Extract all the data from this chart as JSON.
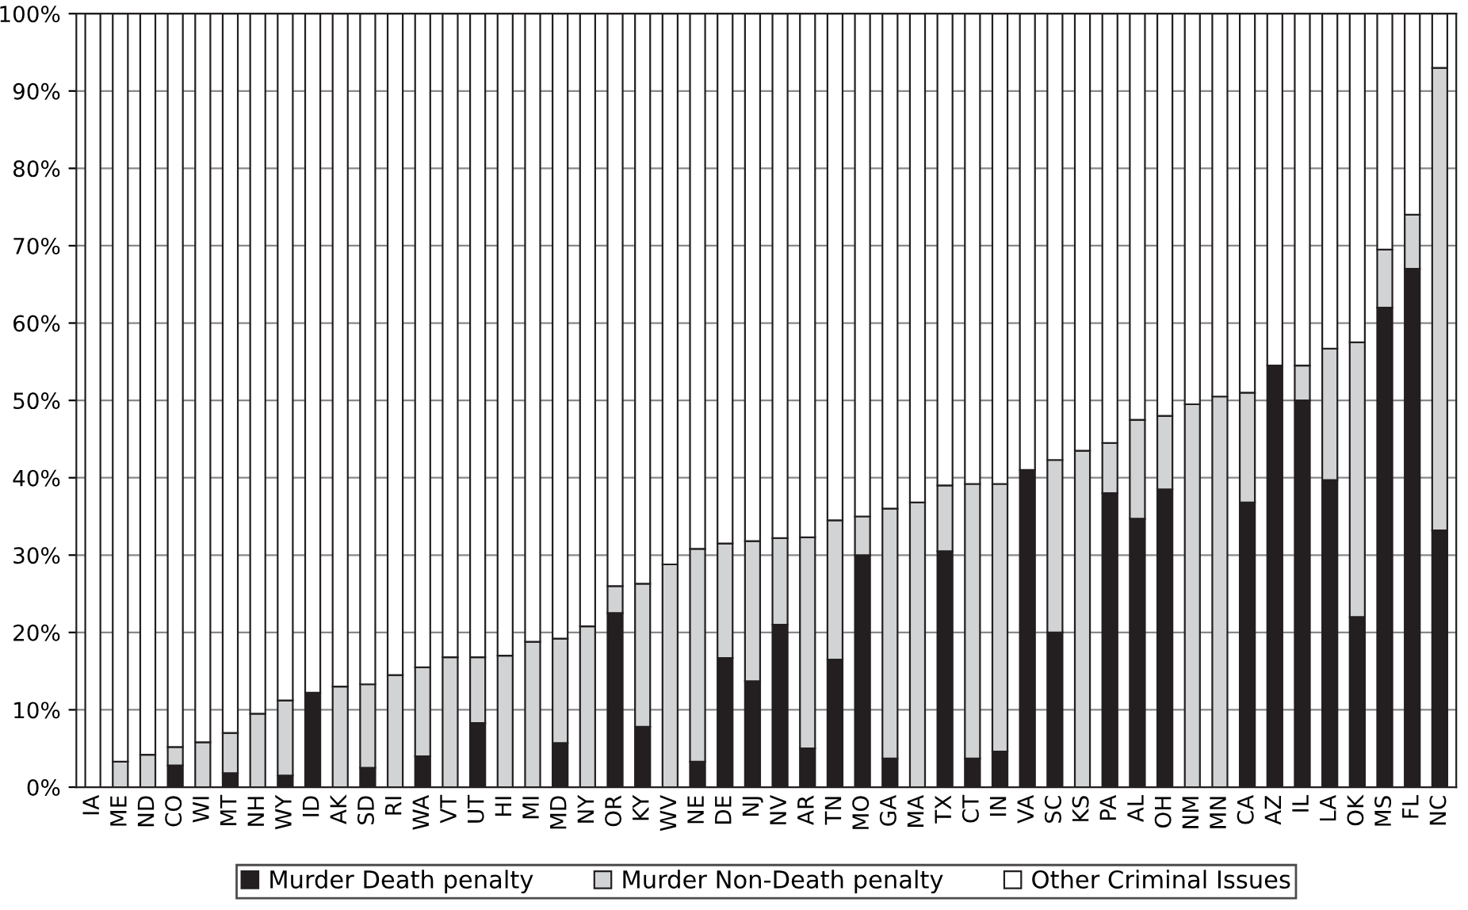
{
  "chart_data": {
    "type": "bar",
    "stacked": true,
    "categories": [
      "IA",
      "ME",
      "ND",
      "CO",
      "WI",
      "MT",
      "NH",
      "WY",
      "ID",
      "AK",
      "SD",
      "RI",
      "WA",
      "VT",
      "UT",
      "HI",
      "MI",
      "MD",
      "NY",
      "OR",
      "KY",
      "WV",
      "NE",
      "DE",
      "NJ",
      "NV",
      "AR",
      "TN",
      "MO",
      "GA",
      "MA",
      "TX",
      "CT",
      "IN",
      "VA",
      "SC",
      "KS",
      "PA",
      "AL",
      "OH",
      "NM",
      "MN",
      "CA",
      "AZ",
      "IL",
      "LA",
      "OK",
      "MS",
      "FL",
      "NC"
    ],
    "series": [
      {
        "name": "Murder Death penalty",
        "color": "#231f20",
        "values": [
          0,
          0,
          0,
          2.8,
          0,
          1.8,
          0,
          1.5,
          12.2,
          0,
          2.5,
          0,
          4,
          0,
          8.3,
          0,
          0,
          5.7,
          0,
          22.5,
          7.8,
          0,
          3.3,
          16.7,
          13.7,
          21,
          5,
          16.5,
          30,
          3.7,
          0,
          30.5,
          3.7,
          4.6,
          41,
          20,
          0,
          38,
          34.7,
          38.5,
          0,
          0,
          36.8,
          54.5,
          50,
          39.7,
          22,
          62,
          67,
          33.2
        ]
      },
      {
        "name": "Murder Non-Death penalty",
        "color": "#d1d3d4",
        "values": [
          0,
          3.3,
          4.2,
          2.4,
          5.8,
          5.2,
          9.5,
          9.7,
          0,
          13,
          10.8,
          14.5,
          11.5,
          16.8,
          8.5,
          17,
          18.8,
          13.5,
          20.8,
          3.5,
          18.5,
          28.8,
          27.5,
          14.8,
          18.1,
          11.2,
          27.3,
          18,
          5,
          32.3,
          36.8,
          8.5,
          35.5,
          34.6,
          0,
          22.3,
          43.5,
          6.5,
          12.8,
          9.5,
          49.5,
          50.5,
          14.2,
          0,
          4.5,
          17,
          35.5,
          7.5,
          7,
          59.8
        ]
      },
      {
        "name": "Other Criminal Issues",
        "color": "#ffffff",
        "values": [
          100,
          96.7,
          95.8,
          94.8,
          94.2,
          93,
          90.5,
          88.8,
          87.8,
          87,
          86.7,
          85.5,
          84.5,
          83.2,
          83.2,
          83,
          81.2,
          80.8,
          79.2,
          74,
          73.7,
          71.2,
          69.2,
          68.5,
          68.2,
          67.8,
          67.7,
          65.5,
          65,
          64,
          63.2,
          61,
          60.8,
          60.8,
          59,
          57.7,
          56.5,
          55.5,
          52.5,
          52,
          50.5,
          49.5,
          49,
          45.5,
          45.5,
          43.3,
          42.5,
          30.5,
          26,
          7
        ]
      }
    ],
    "ylim": [
      0,
      100
    ],
    "yticks": [
      {
        "value": 0,
        "label": "0%"
      },
      {
        "value": 10,
        "label": "10%"
      },
      {
        "value": 20,
        "label": "20%"
      },
      {
        "value": 30,
        "label": "30%"
      },
      {
        "value": 40,
        "label": "40%"
      },
      {
        "value": 50,
        "label": "50%"
      },
      {
        "value": 60,
        "label": "60%"
      },
      {
        "value": 70,
        "label": "70%"
      },
      {
        "value": 80,
        "label": "80%"
      },
      {
        "value": 90,
        "label": "90%"
      },
      {
        "value": 100,
        "label": "100%"
      }
    ],
    "grid": "y",
    "legend": "bottom"
  }
}
